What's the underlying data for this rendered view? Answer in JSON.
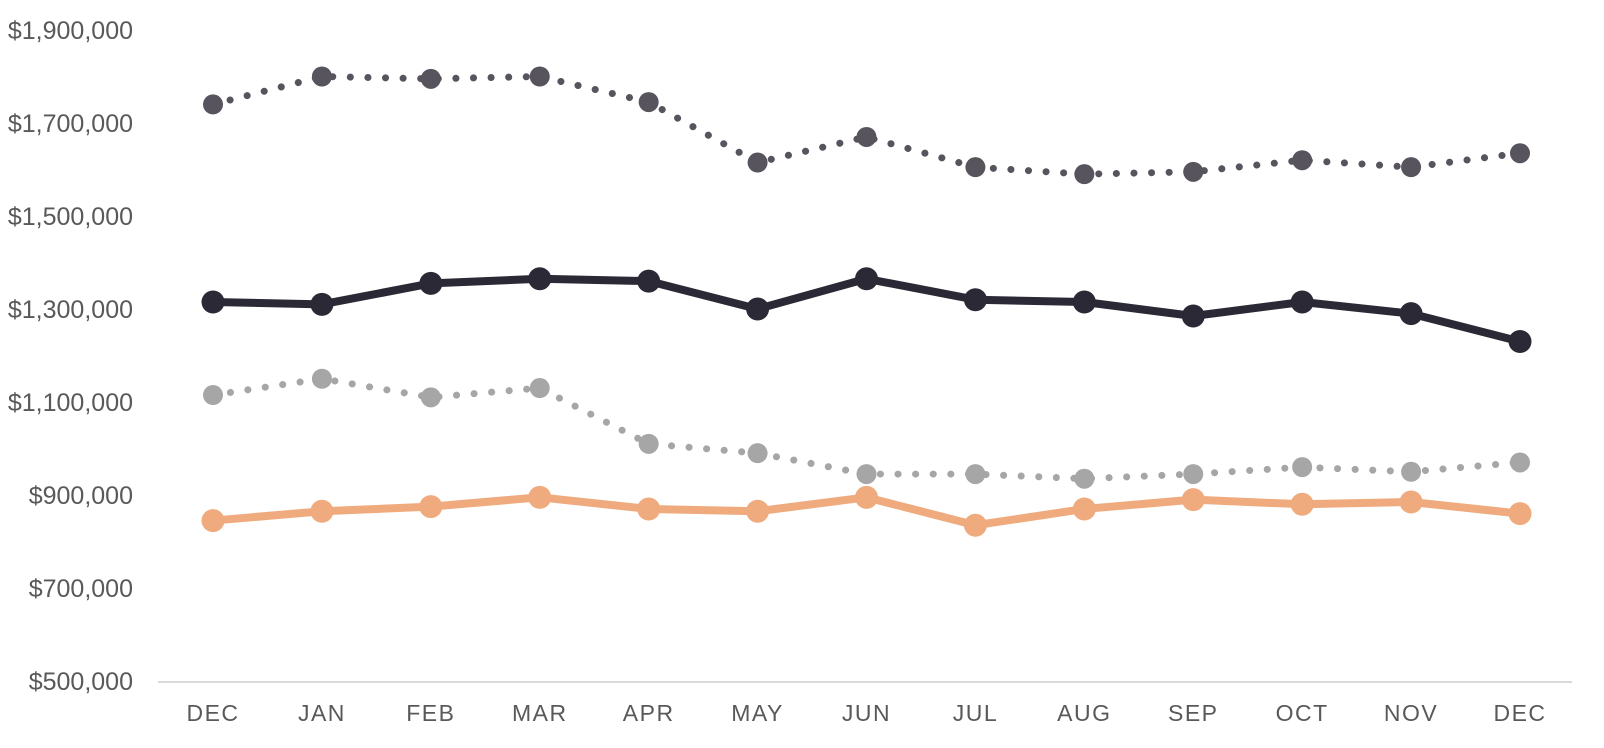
{
  "chart_data": {
    "type": "line",
    "title": "",
    "legend": "none",
    "grid": "off",
    "background": "#FFFFFF",
    "categories": [
      "DEC",
      "JAN",
      "FEB",
      "MAR",
      "APR",
      "MAY",
      "JUN",
      "JUL",
      "AUG",
      "SEP",
      "OCT",
      "NOV",
      "DEC"
    ],
    "series": [
      {
        "name": "dark-gray-dotted-line",
        "style": "dotted",
        "color": "#57545E",
        "values": [
          1740000,
          1800000,
          1795000,
          1800000,
          1745000,
          1615000,
          1670000,
          1605000,
          1590000,
          1595000,
          1620000,
          1605000,
          1635000
        ]
      },
      {
        "name": "black-solid-line",
        "style": "solid",
        "color": "#2B2935",
        "values": [
          1315000,
          1310000,
          1355000,
          1365000,
          1360000,
          1300000,
          1365000,
          1320000,
          1315000,
          1285000,
          1315000,
          1290000,
          1230000
        ]
      },
      {
        "name": "light-gray-dotted-line",
        "style": "dotted",
        "color": "#A6A6A6",
        "values": [
          1115000,
          1150000,
          1110000,
          1130000,
          1010000,
          990000,
          945000,
          945000,
          935000,
          945000,
          960000,
          950000,
          970000
        ]
      },
      {
        "name": "orange-solid-line",
        "style": "solid",
        "color": "#EFAB7E",
        "values": [
          845000,
          865000,
          875000,
          895000,
          870000,
          865000,
          895000,
          835000,
          870000,
          890000,
          880000,
          885000,
          860000
        ]
      }
    ],
    "y_axis": {
      "min": 500000,
      "max": 1900000,
      "step": 200000,
      "ticks": [
        1900000,
        1700000,
        1500000,
        1300000,
        1100000,
        900000,
        700000,
        500000
      ],
      "tick_labels": [
        "$1,900,000",
        "$1,700,000",
        "$1,500,000",
        "$1,300,000",
        "$1,100,000",
        "$900,000",
        "$700,000",
        "$500,000"
      ],
      "label_color": "#595959"
    },
    "x_axis": {
      "labels": [
        "DEC",
        "JAN",
        "FEB",
        "MAR",
        "APR",
        "MAY",
        "JUN",
        "JUL",
        "AUG",
        "SEP",
        "OCT",
        "NOV",
        "DEC"
      ],
      "label_color": "#595959",
      "axis_line_color": "#D9D9D9"
    }
  }
}
